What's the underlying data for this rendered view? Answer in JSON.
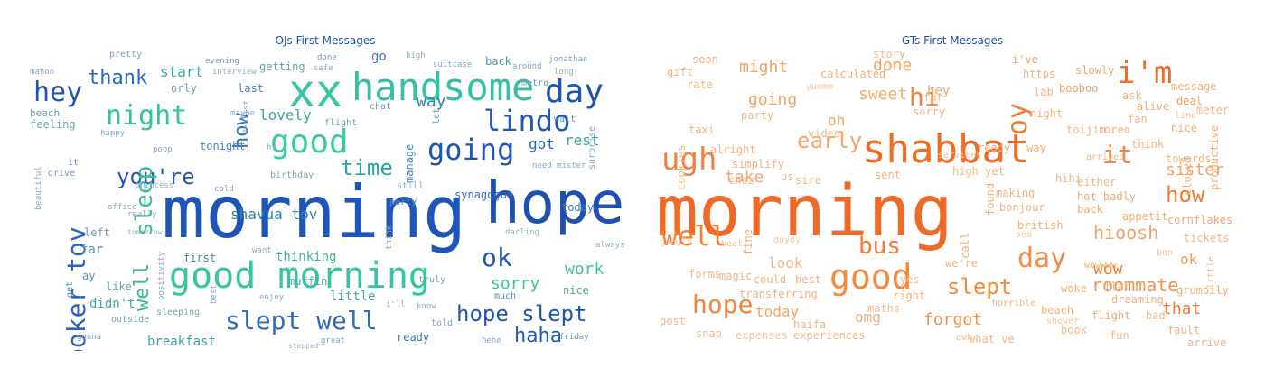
{
  "left": {
    "title": "OJs First Messages",
    "words": {
      "morning": "morning",
      "hope": "hope",
      "xx": "xx",
      "handsome": "handsome",
      "day": "day",
      "good": "good",
      "good_morning": "good morning",
      "night": "night",
      "hey": "hey",
      "thank": "thank",
      "lindo": "lindo",
      "going": "going",
      "time": "time",
      "you_re": "you're",
      "sleep": "sleep",
      "boker_tov": "boker tov",
      "slept_well": "slept well",
      "hope_slept": "hope slept",
      "haha": "haha",
      "ok": "ok",
      "work": "work",
      "sorry": "sorry",
      "lovely": "lovely",
      "shavua_tov": "shavua tov",
      "way": "way",
      "start": "start",
      "how": "how",
      "well": "well",
      "didn_t": "didn't",
      "got": "got",
      "rest": "rest",
      "synagogue": "synagogue",
      "today": "today",
      "thinking": "thinking",
      "first": "first",
      "little": "little",
      "breakfast": "breakfast",
      "ready": "ready",
      "muffin": "muffin",
      "much": "much",
      "nice": "nice",
      "tonight": "tonight",
      "feeling": "feeling",
      "beach": "beach",
      "orly": "orly",
      "last": "last",
      "getting": "getting",
      "birthday": "birthday",
      "far": "far",
      "like": "like",
      "left": "left",
      "still": "still",
      "party": "party",
      "manage": "manage",
      "let": "let",
      "go": "go",
      "back": "back",
      "suitcase": "suitcase",
      "jonathan": "jonathan",
      "pretty": "pretty",
      "around": "around",
      "long": "long",
      "metro": "metro",
      "wait": "wait",
      "surprise": "surprise",
      "always": "always",
      "friday": "friday",
      "told": "told",
      "hehe": "hehe",
      "truly": "truly",
      "chat": "chat",
      "flight": "flight",
      "maybe": "maybe",
      "evening": "evening",
      "interview": "interview",
      "done": "done",
      "high": "high",
      "safe": "safe",
      "happy": "happy",
      "drive": "drive",
      "it": "it",
      "cold": "cold",
      "princess": "princess",
      "need_mister": "need mister",
      "darling": "darling",
      "tomorrow": "tomorrow",
      "really": "really",
      "office": "office",
      "outside": "outside",
      "sleeping": "sleeping",
      "gonna": "gonna",
      "enjoy": "enjoy",
      "great": "great",
      "stepped": "stepped",
      "best": "best",
      "want": "want",
      "think": "think",
      "know": "know",
      "i_ll": "i'll",
      "ay": "ay",
      "get": "get",
      "beautiful": "beautiful",
      "positivity": "positivity",
      "poop": "poop",
      "hi": "hi",
      "dentist": "dentist",
      "manon": "manon"
    }
  },
  "right": {
    "title": "GTs First Messages",
    "words": {
      "morning": "morning",
      "shabbat": "shabbat",
      "ugh": "ugh",
      "i_m": "i'm",
      "oy": "oy",
      "good": "good",
      "hope": "hope",
      "day": "day",
      "how": "how",
      "hi": "hi",
      "it": "it",
      "well": "well",
      "bus": "bus",
      "slept": "slept",
      "early": "early",
      "might": "might",
      "going": "going",
      "done": "done",
      "sweet": "sweet",
      "hey": "hey",
      "hioosh": "hioosh",
      "wow": "wow",
      "roommate": "roommate",
      "sister": "sister",
      "forgot": "forgot",
      "that": "that",
      "today": "today",
      "omg": "omg",
      "take": "take",
      "look": "look",
      "ok": "ok",
      "oh": "oh",
      "sorry": "sorry",
      "calculated": "calculated",
      "story": "story",
      "i_ve": "i've",
      "https": "https",
      "slowly": "slowly",
      "lab": "lab",
      "booboo": "booboo",
      "message": "message",
      "ask": "ask",
      "alive": "alive",
      "deal": "deal",
      "night": "night",
      "meter": "meter",
      "nice": "nice",
      "productive": "productive",
      "closed": "closed",
      "think": "think",
      "towards": "towards",
      "arrived": "arrived",
      "either": "either",
      "hot_badly": "hot badly",
      "making": "making",
      "bonjour": "bonjour",
      "back": "back",
      "appetit": "appetit",
      "cornflakes": "cornflakes",
      "british": "british",
      "tickets": "tickets",
      "sea": "sea",
      "book": "book",
      "fun": "fun",
      "flight": "flight",
      "dreaming": "dreaming",
      "flat": "flat",
      "bad": "bad",
      "fault": "fault",
      "arrive": "arrive",
      "woke": "woke",
      "beach": "beach",
      "horrible": "horrible",
      "shower": "shower",
      "what_ve": "what've",
      "experiences": "experiences",
      "expenses": "expenses",
      "snap": "snap",
      "post": "post",
      "maths": "maths",
      "transferring": "transferring",
      "magic": "magic",
      "forms": "forms",
      "google": "google",
      "beat": "beat",
      "dayoy": "dayoy",
      "best": "best",
      "could": "could",
      "fine": "fine",
      "haifa": "haifa",
      "right": "right",
      "yes": "yes",
      "we_re": "we're",
      "soon": "soon",
      "gift": "gift",
      "rate": "rate",
      "taxi": "taxi",
      "alright": "alright",
      "video": "video",
      "party": "party",
      "ready": "ready",
      "simplify": "simplify",
      "cookies": "cookies",
      "sire": "sire",
      "high_yet": "high yet",
      "sent": "sent",
      "call": "call",
      "found": "found",
      "way": "way",
      "hihi": "hihi",
      "grumpily": "grumpily",
      "little": "little",
      "wowwww": "wowwww",
      "bon": "bon",
      "yummm": "yummm",
      "far": "far",
      "chez": "chez",
      "us": "us",
      "fan": "fan",
      "jim": "jim",
      "toi": "toi",
      "oreo": "oreo",
      "line": "line",
      "services": "services",
      "awh": "awh"
    }
  }
}
